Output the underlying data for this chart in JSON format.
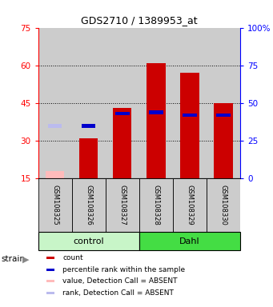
{
  "title": "GDS2710 / 1389953_at",
  "samples": [
    "GSM108325",
    "GSM108326",
    "GSM108327",
    "GSM108328",
    "GSM108329",
    "GSM108330"
  ],
  "group_labels": [
    "control",
    "Dahl"
  ],
  "group_colors": [
    "#c8f5c8",
    "#44dd44"
  ],
  "red_values": [
    18.0,
    31.0,
    43.0,
    61.0,
    57.0,
    45.0
  ],
  "blue_values": [
    35.0,
    35.0,
    43.0,
    44.0,
    42.0,
    42.0
  ],
  "red_absent": [
    true,
    false,
    false,
    false,
    false,
    false
  ],
  "blue_absent": [
    true,
    false,
    false,
    false,
    false,
    false
  ],
  "ylim_left": [
    15,
    75
  ],
  "ylim_right": [
    0,
    100
  ],
  "yticks_left": [
    15,
    30,
    45,
    60,
    75
  ],
  "yticks_right": [
    0,
    25,
    50,
    75,
    100
  ],
  "bar_base": 15,
  "bar_width": 0.55,
  "red_color": "#cc0000",
  "blue_color": "#0000cc",
  "pink_color": "#ffbbbb",
  "light_blue_color": "#bbbbee",
  "bg_color": "#cccccc"
}
